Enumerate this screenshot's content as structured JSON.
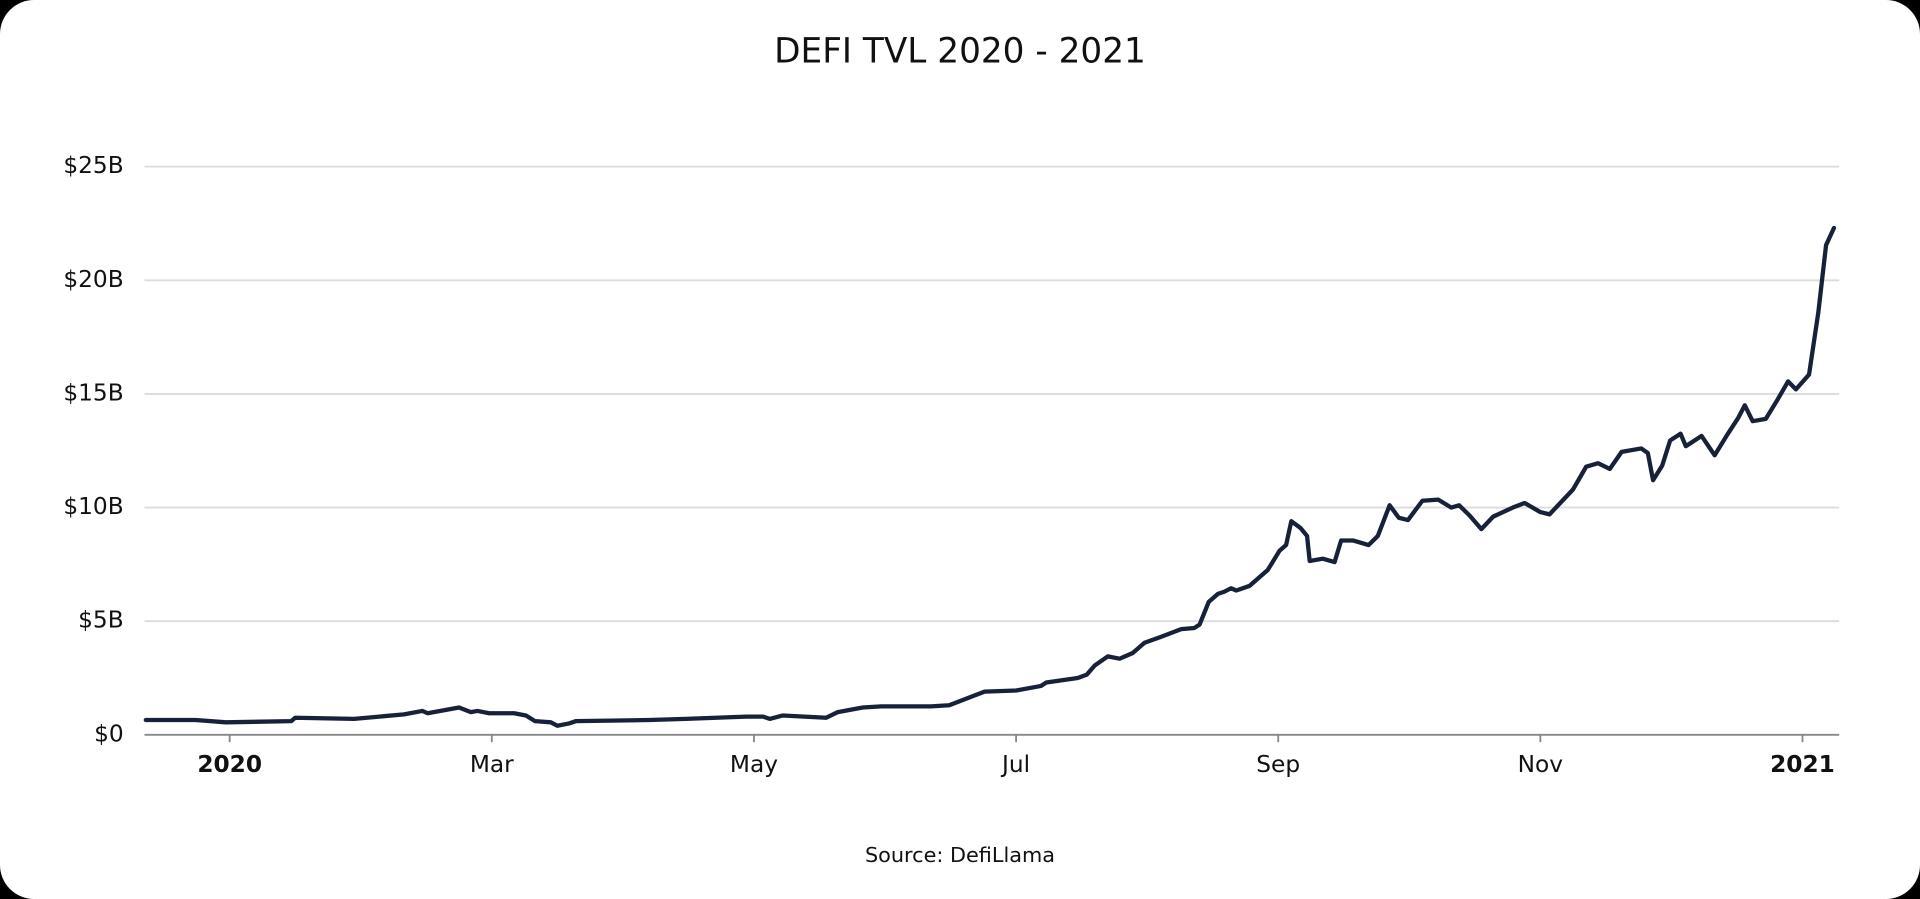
{
  "chart_data": {
    "type": "line",
    "title": "DEFI TVL 2020 - 2021",
    "caption": "Source: DefiLlama",
    "x": [
      -0.64,
      -0.45,
      -0.26,
      -0.03,
      0.47,
      0.5,
      0.95,
      1.33,
      1.47,
      1.51,
      1.75,
      1.84,
      1.89,
      1.98,
      2.17,
      2.26,
      2.33,
      2.45,
      2.5,
      2.59,
      2.64,
      3.2,
      3.48,
      3.94,
      4.07,
      4.12,
      4.22,
      4.55,
      4.64,
      4.83,
      4.97,
      5.35,
      5.49,
      5.67,
      5.76,
      6.0,
      6.19,
      6.23,
      6.47,
      6.54,
      6.6,
      6.7,
      6.79,
      6.89,
      6.98,
      7.1,
      7.26,
      7.36,
      7.4,
      7.47,
      7.54,
      7.59,
      7.64,
      7.68,
      7.78,
      7.92,
      8.01,
      8.06,
      8.1,
      8.17,
      8.22,
      8.24,
      8.34,
      8.43,
      8.48,
      8.57,
      8.69,
      8.76,
      8.85,
      8.92,
      8.99,
      9.1,
      9.22,
      9.32,
      9.38,
      9.46,
      9.55,
      9.64,
      9.79,
      9.88,
      10.0,
      10.07,
      10.16,
      10.25,
      10.35,
      10.44,
      10.53,
      10.62,
      10.77,
      10.82,
      10.86,
      10.93,
      10.99,
      11.07,
      11.11,
      11.23,
      11.33,
      11.42,
      11.51,
      11.56,
      11.62,
      11.72,
      11.81,
      11.89,
      11.95,
      12.05,
      12.12,
      12.18,
      12.24
    ],
    "series": [
      {
        "name": "TVL",
        "color": "#18213a",
        "values": [
          0.65,
          0.65,
          0.65,
          0.55,
          0.6,
          0.75,
          0.7,
          0.9,
          1.05,
          0.95,
          1.2,
          1.0,
          1.05,
          0.95,
          0.95,
          0.85,
          0.6,
          0.55,
          0.4,
          0.5,
          0.6,
          0.65,
          0.7,
          0.8,
          0.8,
          0.7,
          0.85,
          0.75,
          1.0,
          1.2,
          1.25,
          1.25,
          1.3,
          1.7,
          1.9,
          1.95,
          2.15,
          2.3,
          2.5,
          2.65,
          3.05,
          3.45,
          3.35,
          3.6,
          4.05,
          4.3,
          4.65,
          4.7,
          4.85,
          5.85,
          6.2,
          6.3,
          6.45,
          6.35,
          6.55,
          7.25,
          8.1,
          8.35,
          9.4,
          9.1,
          8.75,
          7.65,
          7.75,
          7.6,
          8.55,
          8.55,
          8.35,
          8.75,
          10.1,
          9.55,
          9.45,
          10.3,
          10.35,
          10.0,
          10.1,
          9.65,
          9.05,
          9.6,
          10.0,
          10.2,
          9.8,
          9.7,
          10.25,
          10.8,
          11.8,
          11.95,
          11.7,
          12.45,
          12.6,
          12.4,
          11.2,
          11.85,
          12.95,
          13.25,
          12.7,
          13.15,
          12.3,
          13.15,
          13.95,
          14.5,
          13.8,
          13.9,
          14.75,
          15.55,
          15.2,
          15.85,
          18.55,
          21.55,
          22.3
        ]
      }
    ],
    "xlim": [
      -0.65,
      12.28
    ],
    "xticks": [
      {
        "value": 0,
        "label": "2020"
      },
      {
        "value": 2,
        "label": "Mar"
      },
      {
        "value": 4,
        "label": "May"
      },
      {
        "value": 6,
        "label": "Jul"
      },
      {
        "value": 8,
        "label": "Sep"
      },
      {
        "value": 10,
        "label": "Nov"
      },
      {
        "value": 12,
        "label": "2021"
      }
    ],
    "ylim": [
      0,
      25
    ],
    "yticks": [
      {
        "value": 0,
        "label": "$0"
      },
      {
        "value": 5,
        "label": "$5B"
      },
      {
        "value": 10,
        "label": "$10B"
      },
      {
        "value": 15,
        "label": "$15B"
      },
      {
        "value": 20,
        "label": "$20B"
      },
      {
        "value": 25,
        "label": "$25B"
      }
    ],
    "grid": true
  }
}
